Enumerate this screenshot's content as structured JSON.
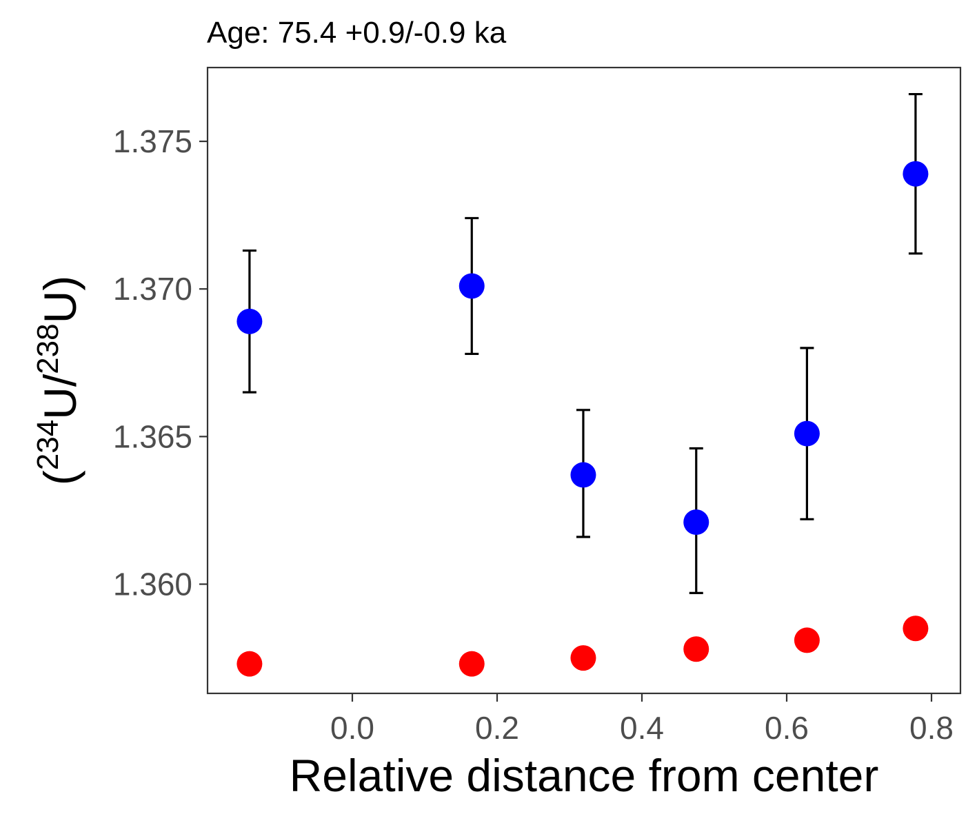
{
  "chart_data": {
    "type": "scatter",
    "title": "Age: 75.4 +0.9/-0.9 ka",
    "xlabel": "Relative distance from center",
    "ylabel": {
      "open": "(",
      "sup1": "234",
      "mid": "U/",
      "sup2": "238",
      "end": "U)"
    },
    "xlim": [
      -0.2,
      0.84
    ],
    "ylim": [
      1.3563,
      1.3775
    ],
    "x_ticks": [
      0.0,
      0.2,
      0.4,
      0.6,
      0.8
    ],
    "x_tick_labels": [
      "0.0",
      "0.2",
      "0.4",
      "0.6",
      "0.8"
    ],
    "y_ticks": [
      1.36,
      1.365,
      1.37,
      1.375
    ],
    "y_tick_labels": [
      "1.360",
      "1.365",
      "1.370",
      "1.375"
    ],
    "grid": false,
    "series": [
      {
        "color": "#0000ff",
        "points": [
          {
            "x": -0.142,
            "y": 1.3689,
            "ymin": 1.3665,
            "ymax": 1.3713
          },
          {
            "x": 0.165,
            "y": 1.3701,
            "ymin": 1.3678,
            "ymax": 1.3724
          },
          {
            "x": 0.319,
            "y": 1.3637,
            "ymin": 1.3616,
            "ymax": 1.3659
          },
          {
            "x": 0.475,
            "y": 1.3621,
            "ymin": 1.3597,
            "ymax": 1.3646
          },
          {
            "x": 0.628,
            "y": 1.3651,
            "ymin": 1.3622,
            "ymax": 1.368
          },
          {
            "x": 0.778,
            "y": 1.3739,
            "ymin": 1.3712,
            "ymax": 1.3766
          }
        ]
      },
      {
        "color": "#ff0000",
        "points": [
          {
            "x": -0.142,
            "y": 1.3573
          },
          {
            "x": 0.165,
            "y": 1.3573
          },
          {
            "x": 0.319,
            "y": 1.3575
          },
          {
            "x": 0.475,
            "y": 1.3578
          },
          {
            "x": 0.628,
            "y": 1.3581
          },
          {
            "x": 0.778,
            "y": 1.3585
          }
        ]
      }
    ]
  }
}
